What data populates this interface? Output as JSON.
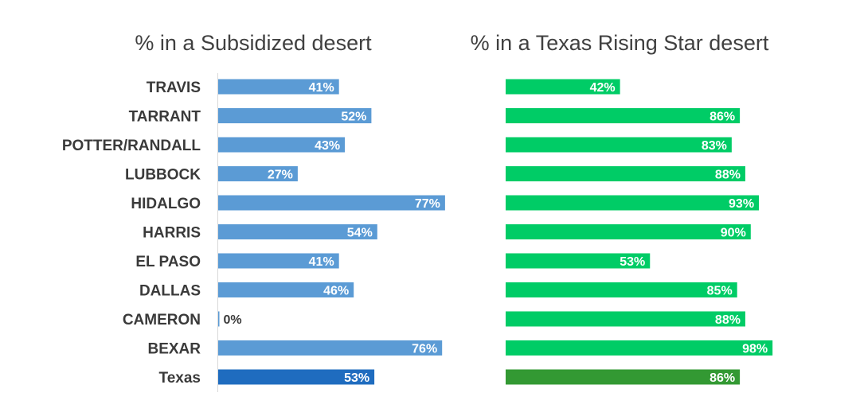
{
  "chart_data": [
    {
      "type": "bar",
      "orientation": "horizontal",
      "title": "% in a Subsidized desert",
      "categories": [
        "TRAVIS",
        "TARRANT",
        "POTTER/RANDALL",
        "LUBBOCK",
        "HIDALGO",
        "HARRIS",
        "EL PASO",
        "DALLAS",
        "CAMERON",
        "BEXAR",
        "Texas"
      ],
      "values": [
        41,
        52,
        43,
        27,
        77,
        54,
        41,
        46,
        0,
        76,
        53
      ],
      "value_labels": [
        "41%",
        "52%",
        "43%",
        "27%",
        "77%",
        "54%",
        "41%",
        "46%",
        "0%",
        "76%",
        "53%"
      ],
      "unit": "%",
      "xlim": [
        0,
        100
      ],
      "bar_color": "#5b9bd5",
      "highlight_color": "#1f6cbf",
      "highlight_category": "Texas"
    },
    {
      "type": "bar",
      "orientation": "horizontal",
      "title": "% in a Texas Rising Star desert",
      "categories": [
        "TRAVIS",
        "TARRANT",
        "POTTER/RANDALL",
        "LUBBOCK",
        "HIDALGO",
        "HARRIS",
        "EL PASO",
        "DALLAS",
        "CAMERON",
        "BEXAR",
        "Texas"
      ],
      "values": [
        42,
        86,
        83,
        88,
        93,
        90,
        53,
        85,
        88,
        98,
        86
      ],
      "value_labels": [
        "42%",
        "86%",
        "83%",
        "88%",
        "93%",
        "90%",
        "53%",
        "85%",
        "88%",
        "98%",
        "86%"
      ],
      "unit": "%",
      "xlim": [
        0,
        100
      ],
      "bar_color": "#00cc66",
      "highlight_color": "#339933",
      "highlight_category": "Texas"
    }
  ]
}
